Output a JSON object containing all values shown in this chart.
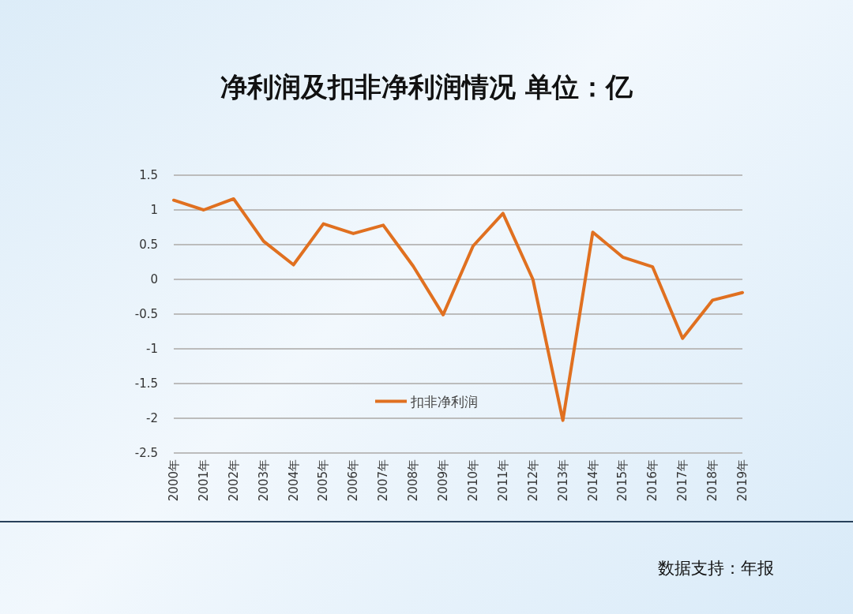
{
  "chart_data": {
    "type": "line",
    "title": "净利润及扣非净利润情况 单位：亿",
    "categories": [
      "2000年",
      "2001年",
      "2002年",
      "2003年",
      "2004年",
      "2005年",
      "2006年",
      "2007年",
      "2008年",
      "2009年",
      "2010年",
      "2011年",
      "2012年",
      "2013年",
      "2014年",
      "2015年",
      "2016年",
      "2017年",
      "2018年",
      "2019年"
    ],
    "series": [
      {
        "name": "扣非净利润",
        "color": "#e07020",
        "values": [
          1.14,
          1.0,
          1.16,
          0.55,
          0.21,
          0.8,
          0.66,
          0.78,
          0.19,
          -0.51,
          0.48,
          0.95,
          0.0,
          -2.03,
          0.68,
          0.32,
          0.18,
          -0.85,
          -0.3,
          -0.19
        ]
      }
    ],
    "ylim": [
      -2.5,
      1.5
    ],
    "yticks": [
      1.5,
      1,
      0.5,
      0,
      -0.5,
      -1,
      -1.5,
      -2,
      -2.5
    ],
    "grid": "y",
    "legend": "bottom",
    "marker": "none",
    "line_style": "solid",
    "annotations": [
      "数据支持：年报"
    ]
  }
}
